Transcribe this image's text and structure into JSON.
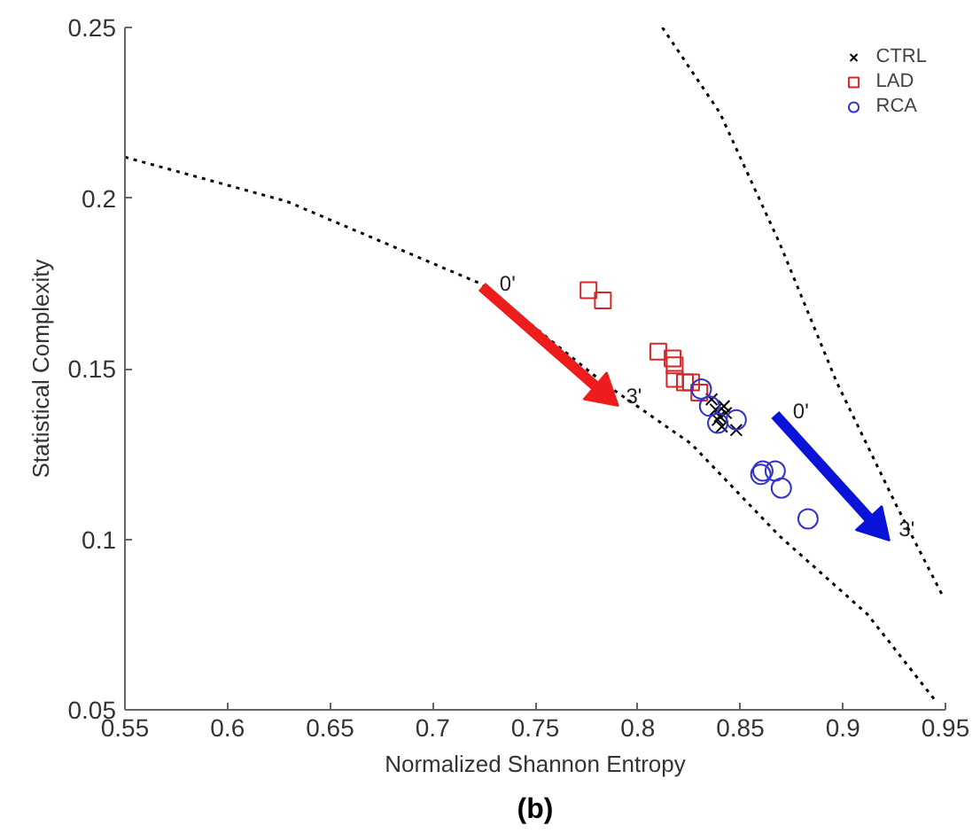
{
  "chart_data": {
    "type": "scatter",
    "xlabel": "Normalized Shannon Entropy",
    "ylabel": "Statistical Complexity",
    "xlim": [
      0.55,
      0.95
    ],
    "ylim": [
      0.05,
      0.25
    ],
    "xticks": [
      0.55,
      0.6,
      0.65,
      0.7,
      0.75,
      0.8,
      0.85,
      0.9,
      0.95
    ],
    "yticks": [
      0.05,
      0.1,
      0.15,
      0.2,
      0.25
    ],
    "grid": false,
    "legend": "top right",
    "series": [
      {
        "type": "line",
        "line_style": "dotted",
        "marker": "none",
        "color": "#000000",
        "x": [
          0.55,
          0.629,
          0.723,
          0.783,
          0.826,
          0.869,
          0.912,
          0.946
        ],
        "values": [
          0.212,
          0.199,
          0.175,
          0.146,
          0.128,
          0.101,
          0.078,
          0.052
        ]
      },
      {
        "type": "line",
        "line_style": "dotted",
        "marker": "none",
        "color": "#000000",
        "x": [
          0.812,
          0.84,
          0.869,
          0.897,
          0.926,
          0.949
        ],
        "values": [
          0.25,
          0.225,
          0.187,
          0.146,
          0.11,
          0.083
        ]
      },
      {
        "type": "line",
        "line_style": "solid",
        "color": "#ee1c1c",
        "x": [
          0.724,
          0.783
        ],
        "values": [
          0.174,
          0.143
        ]
      },
      {
        "type": "line",
        "line_style": "solid",
        "color": "#0a14d8",
        "x": [
          0.867,
          0.916
        ],
        "values": [
          0.1365,
          0.104
        ]
      },
      {
        "name": "CTRL",
        "type": "scatter",
        "marker": "cross",
        "color": "#000000",
        "x": [
          0.836,
          0.838,
          0.84,
          0.842,
          0.839,
          0.843,
          0.841,
          0.848
        ],
        "values": [
          0.141,
          0.138,
          0.136,
          0.139,
          0.135,
          0.137,
          0.133,
          0.132
        ]
      },
      {
        "name": "LAD",
        "type": "scatter",
        "marker": "square",
        "color": "#d62728",
        "x": [
          0.776,
          0.783,
          0.81,
          0.817,
          0.818,
          0.818,
          0.823,
          0.826,
          0.83
        ],
        "values": [
          0.173,
          0.17,
          0.155,
          0.153,
          0.151,
          0.147,
          0.146,
          0.146,
          0.143
        ]
      },
      {
        "name": "RCA",
        "type": "scatter",
        "marker": "circle",
        "color": "#3333cc",
        "x": [
          0.831,
          0.835,
          0.839,
          0.848,
          0.86,
          0.861,
          0.867,
          0.87,
          0.883
        ],
        "values": [
          0.144,
          0.139,
          0.134,
          0.135,
          0.119,
          0.12,
          0.12,
          0.115,
          0.106
        ]
      }
    ],
    "annotations": [
      {
        "text": "0'",
        "x": 0.724,
        "y": 0.174
      },
      {
        "text": "3'",
        "x": 0.783,
        "y": 0.143
      },
      {
        "text": "0'",
        "x": 0.867,
        "y": 0.1365
      },
      {
        "text": "3'",
        "x": 0.916,
        "y": 0.104
      },
      "(b)"
    ]
  }
}
